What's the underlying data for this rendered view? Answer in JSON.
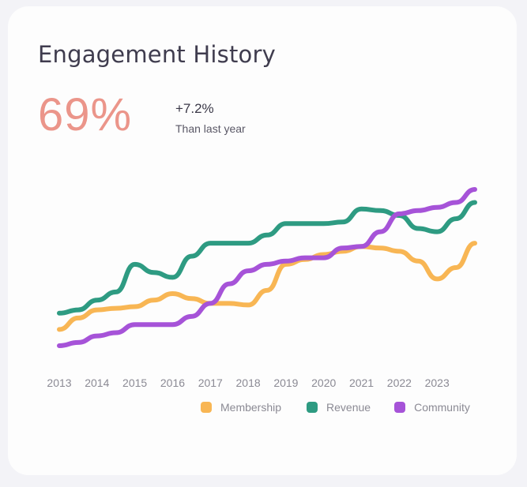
{
  "card": {
    "title": "Engagement History",
    "big_value": "69%",
    "delta": "+7.2%",
    "delta_label": "Than last year"
  },
  "colors": {
    "Membership": "#f8b654",
    "Revenue": "#2e9b82",
    "Community": "#a653d8",
    "big_value": "#eb958a"
  },
  "chart_data": {
    "type": "line",
    "title": "",
    "xlabel": "",
    "ylabel": "",
    "categories": [
      "2013",
      "2014",
      "2015",
      "2016",
      "2017",
      "2018",
      "2019",
      "2020",
      "2021",
      "2022",
      "2023"
    ],
    "x": [
      2013,
      2013.5,
      2014,
      2014.5,
      2015,
      2015.5,
      2016,
      2016.5,
      2017,
      2017.5,
      2018,
      2018.5,
      2019,
      2019.5,
      2020,
      2020.5,
      2021,
      2021.5,
      2022,
      2022.5,
      2023,
      2023.5,
      2024
    ],
    "series": [
      {
        "name": "Membership",
        "values": [
          10,
          17,
          22,
          23,
          24,
          28,
          32,
          29,
          26,
          26,
          25,
          34,
          50,
          53,
          56,
          58,
          61,
          60,
          58,
          52,
          41,
          48,
          63
        ]
      },
      {
        "name": "Revenue",
        "values": [
          20,
          22,
          28,
          33,
          50,
          45,
          42,
          55,
          63,
          63,
          63,
          68,
          75,
          75,
          75,
          76,
          84,
          83,
          80,
          72,
          70,
          78,
          88
        ]
      },
      {
        "name": "Community",
        "values": [
          0,
          2,
          6,
          8,
          13,
          13,
          13,
          18,
          26,
          38,
          46,
          50,
          52,
          54,
          54,
          60,
          61,
          70,
          81,
          83,
          85,
          88,
          96
        ]
      }
    ],
    "legend": "bottom",
    "grid": false
  }
}
